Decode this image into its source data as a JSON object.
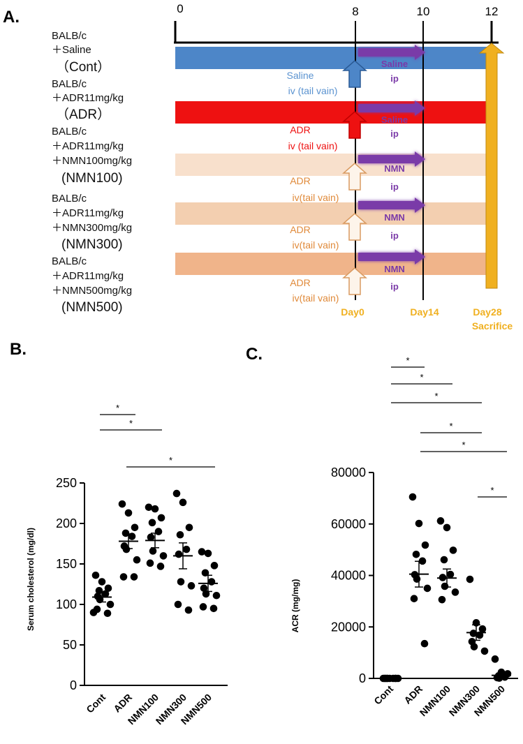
{
  "panel_a": {
    "letter": "A.",
    "days": [
      "0",
      "8",
      "10",
      "12"
    ],
    "colors": {
      "cont": "#4d86c8",
      "adr": "#ee1111",
      "nmn100": "#f8e0cc",
      "nmn300": "#f3cfb0",
      "nmn500": "#f0b48a",
      "purple": "#7a3aa8",
      "gold": "#f0b020",
      "saline_text": "#5b93d0",
      "adr_text": "#ee1111",
      "nmn_text": "#e08a3a"
    },
    "groups": [
      {
        "key": "cont",
        "line1": "BALB/c",
        "line2": "＋Saline",
        "line3": "",
        "name": "（Cont）",
        "ip": "Saline",
        "ip_route": "ip",
        "inj": "Saline",
        "inj_route": "iv (tail vain)"
      },
      {
        "key": "adr",
        "line1": "BALB/c",
        "line2": "＋ADR11mg/kg",
        "line3": "",
        "name": "（ADR）",
        "ip": "Saline",
        "ip_route": "ip",
        "inj": "ADR",
        "inj_route": "iv (tail vain)"
      },
      {
        "key": "nmn100",
        "line1": "BALB/c",
        "line2": "＋ADR11mg/kg",
        "line3": "＋NMN100mg/kg",
        "name": "(NMN100)",
        "ip": "NMN",
        "ip_route": "ip",
        "inj": "ADR",
        "inj_route": "iv(tail vain)"
      },
      {
        "key": "nmn300",
        "line1": "BALB/c",
        "line2": "＋ADR11mg/kg",
        "line3": "＋NMN300mg/kg",
        "name": "(NMN300)",
        "ip": "NMN",
        "ip_route": "ip",
        "inj": "ADR",
        "inj_route": "iv(tail vain)"
      },
      {
        "key": "nmn500",
        "line1": "BALB/c",
        "line2": "＋ADR11mg/kg",
        "line3": "＋NMN500mg/kg",
        "name": "(NMN500)",
        "ip": "NMN",
        "ip_route": "ip",
        "inj": "ADR",
        "inj_route": "iv(tail vain)"
      }
    ],
    "markers": [
      {
        "label": "Day0",
        "label2": ""
      },
      {
        "label": "Day14",
        "label2": ""
      },
      {
        "label": "Day28",
        "label2": "Sacrifice"
      }
    ]
  },
  "chart_data": [
    {
      "panel": "B.",
      "type": "scatter",
      "ylabel": "Serum cholesterol (mg/dl)",
      "ylim": [
        0,
        250
      ],
      "yticks": [
        0,
        50,
        100,
        150,
        200,
        250
      ],
      "categories": [
        "Cont",
        "ADR",
        "NMN100",
        "NMN300",
        "NMN500"
      ],
      "means": [
        109,
        178,
        179,
        160,
        126
      ],
      "sem": [
        6,
        9,
        9,
        16,
        10
      ],
      "points": [
        [
          136,
          128,
          120,
          117,
          113,
          110,
          106,
          100,
          94,
          89,
          90
        ],
        [
          224,
          213,
          195,
          188,
          184,
          172,
          168,
          155,
          134,
          134
        ],
        [
          220,
          218,
          207,
          201,
          190,
          183,
          166,
          160,
          151,
          147
        ],
        [
          237,
          226,
          195,
          186,
          168,
          162,
          128,
          123,
          100,
          93
        ],
        [
          165,
          163,
          148,
          139,
          128,
          120,
          113,
          111,
          97,
          95
        ]
      ],
      "significance": [
        {
          "from": 0,
          "to": 1,
          "label": "*"
        },
        {
          "from": 0,
          "to": 2,
          "label": "*"
        },
        {
          "from": 1,
          "to": 4,
          "label": "*"
        }
      ]
    },
    {
      "panel": "C.",
      "type": "scatter",
      "ylabel": "ACR  (mg/mg)",
      "ylim": [
        0,
        80000
      ],
      "yticks": [
        0,
        20000,
        40000,
        60000,
        80000
      ],
      "categories": [
        "Cont",
        "ADR",
        "NMN100",
        "NMN300",
        "NMN500"
      ],
      "means": [
        0,
        40500,
        39000,
        17800,
        1200
      ],
      "sem": [
        0,
        5000,
        3500,
        3000,
        600
      ],
      "points": [
        [
          0,
          0,
          0,
          0,
          0,
          0,
          0,
          0,
          0,
          0
        ],
        [
          70500,
          60200,
          51800,
          48200,
          45600,
          40300,
          38600,
          35000,
          31000,
          13500
        ],
        [
          61200,
          58600,
          49800,
          46100,
          40400,
          39200,
          35800,
          33500,
          30600
        ],
        [
          38500,
          21600,
          19200,
          17500,
          16800,
          14300,
          12300,
          10600
        ],
        [
          7500,
          2400,
          1800,
          1000,
          500,
          300,
          100
        ]
      ],
      "significance": [
        {
          "from": 0,
          "to": 1,
          "label": "*"
        },
        {
          "from": 0,
          "to": 2,
          "label": "*"
        },
        {
          "from": 0,
          "to": 3,
          "label": "*"
        },
        {
          "from": 1,
          "to": 3,
          "label": "*"
        },
        {
          "from": 1,
          "to": 4,
          "label": "*"
        },
        {
          "from": 3,
          "to": 4,
          "label": "*"
        }
      ]
    }
  ]
}
